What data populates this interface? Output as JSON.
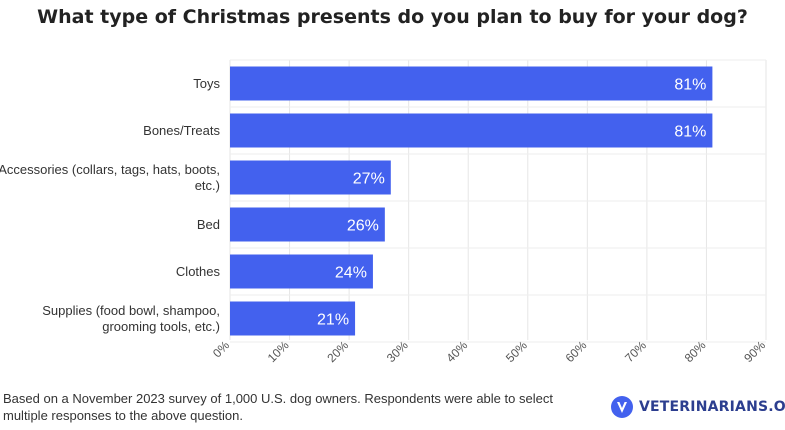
{
  "chart_data": {
    "type": "bar",
    "orientation": "horizontal",
    "title": "What type of Christmas presents do you plan to buy for your dog?",
    "categories": [
      [
        "Toys"
      ],
      [
        "Bones/Treats"
      ],
      [
        "Accessories (collars, tags, hats, boots,",
        "etc.)"
      ],
      [
        "Bed"
      ],
      [
        "Clothes"
      ],
      [
        "Supplies (food bowl, shampoo,",
        "grooming tools, etc.)"
      ]
    ],
    "values": [
      81,
      81,
      27,
      26,
      24,
      21
    ],
    "value_labels": [
      "81%",
      "81%",
      "27%",
      "26%",
      "24%",
      "21%"
    ],
    "xlim": [
      0,
      90
    ],
    "xticks": [
      "0%",
      "10%",
      "20%",
      "30%",
      "40%",
      "50%",
      "60%",
      "70%",
      "80%",
      "90%"
    ],
    "bar_color": "#4361ee",
    "grid": true
  },
  "footnote": "Based on a November 2023 survey of 1,000 U.S. dog owners. Respondents were able to select multiple responses to the above question.",
  "brand": {
    "name": "VETERINARIANS.ORG",
    "color": "#2c3e8f",
    "icon": "v-shield-icon"
  }
}
